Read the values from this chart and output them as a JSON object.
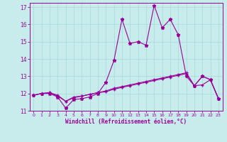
{
  "xlabel": "Windchill (Refroidissement éolien,°C)",
  "background_color": "#c8ecec",
  "line_color": "#990099",
  "x_data": [
    0,
    1,
    2,
    3,
    4,
    5,
    6,
    7,
    8,
    9,
    10,
    11,
    12,
    13,
    14,
    15,
    16,
    17,
    18,
    19,
    20,
    21,
    22,
    23
  ],
  "series1": [
    11.9,
    12.0,
    12.0,
    11.8,
    11.15,
    11.65,
    11.7,
    11.8,
    12.0,
    12.65,
    13.9,
    16.3,
    14.9,
    15.0,
    14.8,
    17.1,
    15.8,
    16.3,
    15.4,
    13.0,
    12.45,
    13.0,
    12.8,
    11.7
  ],
  "series2": [
    11.9,
    12.0,
    12.05,
    11.9,
    11.55,
    11.75,
    11.85,
    11.95,
    12.05,
    12.15,
    12.3,
    12.4,
    12.5,
    12.6,
    12.7,
    12.8,
    12.9,
    13.0,
    13.1,
    13.2,
    12.45,
    13.0,
    12.8,
    11.7
  ],
  "series3": [
    11.9,
    12.0,
    12.05,
    11.85,
    11.55,
    11.8,
    11.85,
    11.95,
    12.05,
    12.1,
    12.25,
    12.35,
    12.45,
    12.55,
    12.65,
    12.75,
    12.85,
    12.95,
    13.05,
    13.15,
    12.45,
    12.5,
    12.8,
    11.7
  ],
  "ylim": [
    11.0,
    17.25
  ],
  "yticks": [
    11,
    12,
    13,
    14,
    15,
    16,
    17
  ],
  "xlim": [
    -0.5,
    23.5
  ],
  "grid_color": "#aadddd",
  "grid_linewidth": 0.6
}
